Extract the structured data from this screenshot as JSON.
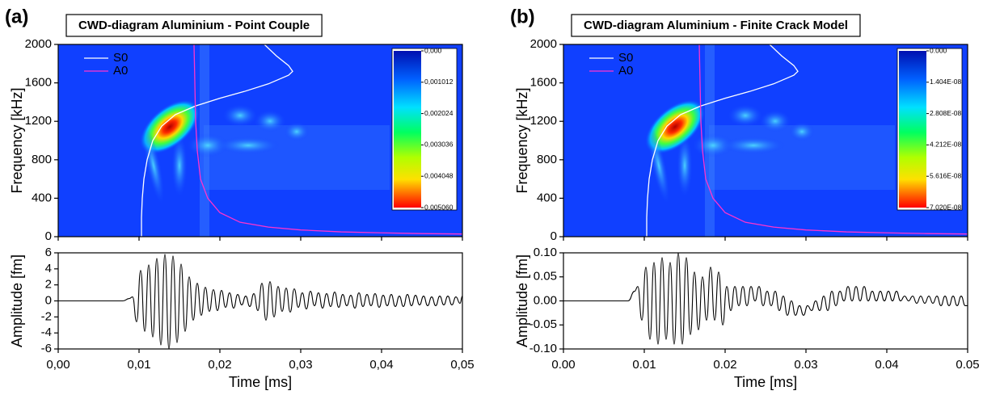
{
  "chart_data": [
    {
      "type": "spectrogram",
      "panel_label": "(a)",
      "title": "CWD-diagram Aluminium - Point Couple",
      "ylabel": "Frequency [kHz]",
      "xlabel": "Time [ms]",
      "xlim": [
        0,
        0.05
      ],
      "xticks": [
        {
          "value": 0,
          "label": "0,00"
        },
        {
          "value": 0.01,
          "label": "0,01"
        },
        {
          "value": 0.02,
          "label": "0,02"
        },
        {
          "value": 0.03,
          "label": "0,03"
        },
        {
          "value": 0.04,
          "label": "0,04"
        },
        {
          "value": 0.05,
          "label": "0,05"
        }
      ],
      "ylim": [
        0,
        2000
      ],
      "yticks": [
        0,
        400,
        800,
        1200,
        1600,
        2000
      ],
      "series": [
        {
          "name": "S0",
          "color": "#ffffff",
          "x": [
            0.0103,
            0.0103,
            0.0104,
            0.0106,
            0.011,
            0.0117,
            0.0128,
            0.0145,
            0.017,
            0.02,
            0.023,
            0.026,
            0.0285,
            0.029,
            0.0285,
            0.027,
            0.0255
          ],
          "values": [
            0,
            200,
            400,
            600,
            800,
            1000,
            1150,
            1270,
            1360,
            1440,
            1510,
            1590,
            1680,
            1720,
            1780,
            1880,
            2000
          ]
        },
        {
          "name": "A0",
          "color": "#ff33cc",
          "x": [
            0.0168,
            0.0169,
            0.017,
            0.0172,
            0.0176,
            0.0185,
            0.02,
            0.0225,
            0.026,
            0.03,
            0.035,
            0.04,
            0.045,
            0.05
          ],
          "values": [
            2000,
            1600,
            1200,
            900,
            600,
            400,
            250,
            150,
            100,
            70,
            50,
            40,
            32,
            28
          ]
        }
      ],
      "colorbar": {
        "lim": [
          0,
          0.00506
        ],
        "ticks": [
          {
            "value": 0,
            "label": "0,000"
          },
          {
            "value": 0.001012,
            "label": "0,001012"
          },
          {
            "value": 0.002024,
            "label": "0,002024"
          },
          {
            "value": 0.003036,
            "label": "0,003036"
          },
          {
            "value": 0.004048,
            "label": "0,004048"
          },
          {
            "value": 0.00506,
            "label": "0,005060"
          }
        ]
      },
      "waveform": {
        "ylabel": "Amplitude [fm]",
        "color": "#000000",
        "ylim": [
          -6,
          6
        ],
        "yticks": [
          6,
          4,
          2,
          0,
          -2,
          -4,
          -6
        ],
        "x": [
          0,
          0.008,
          0.0088,
          0.0092,
          0.0097,
          0.0102,
          0.0107,
          0.0112,
          0.0117,
          0.0122,
          0.0127,
          0.0132,
          0.0137,
          0.0142,
          0.0147,
          0.0152,
          0.0157,
          0.0162,
          0.0167,
          0.0172,
          0.0177,
          0.0182,
          0.0187,
          0.0192,
          0.0197,
          0.0202,
          0.0207,
          0.0212,
          0.0217,
          0.0222,
          0.0227,
          0.0232,
          0.0237,
          0.0242,
          0.0247,
          0.0252,
          0.0257,
          0.0262,
          0.0267,
          0.0272,
          0.0277,
          0.0282,
          0.0287,
          0.0292,
          0.0297,
          0.0302,
          0.0307,
          0.0312,
          0.0317,
          0.0322,
          0.0327,
          0.0332,
          0.0337,
          0.0342,
          0.0347,
          0.0352,
          0.0357,
          0.0362,
          0.0367,
          0.0372,
          0.0377,
          0.0382,
          0.0387,
          0.0392,
          0.0397,
          0.0402,
          0.0407,
          0.0412,
          0.0417,
          0.0422,
          0.0427,
          0.0432,
          0.0437,
          0.0442,
          0.0447,
          0.0452,
          0.0457,
          0.0462,
          0.0467,
          0.0472,
          0.0477,
          0.0482,
          0.0487,
          0.0492,
          0.0497,
          0.05
        ],
        "values": [
          0,
          0,
          0.3,
          0.5,
          -2.6,
          3.8,
          -3.8,
          4.5,
          -4.5,
          5.3,
          -5.5,
          5.8,
          -6,
          5.6,
          -5.2,
          4.6,
          -3.8,
          3.0,
          -2.4,
          2.2,
          -1.8,
          1.7,
          -1.3,
          1.4,
          -1.2,
          1.3,
          -0.8,
          1.0,
          -0.9,
          0.8,
          -0.5,
          0.6,
          -0.7,
          0.9,
          -1.2,
          2.2,
          -2.4,
          2.4,
          -2.0,
          1.8,
          -1.3,
          1.6,
          -1.4,
          1.5,
          -0.8,
          1.0,
          -1.0,
          1.2,
          -0.6,
          1.0,
          -0.9,
          0.9,
          -0.7,
          1.1,
          -0.8,
          0.8,
          -0.6,
          0.7,
          -0.9,
          1.0,
          -0.7,
          0.8,
          -0.6,
          0.9,
          -0.8,
          0.7,
          -0.6,
          0.8,
          -0.7,
          0.6,
          -0.7,
          0.8,
          -0.6,
          0.7,
          -0.5,
          0.6,
          -0.6,
          0.5,
          -0.6,
          0.6,
          -0.5,
          0.6,
          -0.5,
          0.5,
          -0.3,
          0.6
        ]
      }
    },
    {
      "type": "spectrogram",
      "panel_label": "(b)",
      "title": "CWD-diagram Aluminium - Finite Crack Model",
      "ylabel": "Frequency [kHz]",
      "xlabel": "Time [ms]",
      "xlim": [
        0,
        0.05
      ],
      "xticks": [
        {
          "value": 0,
          "label": "0.00"
        },
        {
          "value": 0.01,
          "label": "0.01"
        },
        {
          "value": 0.02,
          "label": "0.02"
        },
        {
          "value": 0.03,
          "label": "0.03"
        },
        {
          "value": 0.04,
          "label": "0.04"
        },
        {
          "value": 0.05,
          "label": "0.05"
        }
      ],
      "ylim": [
        0,
        2000
      ],
      "yticks": [
        0,
        400,
        800,
        1200,
        1600,
        2000
      ],
      "series": [
        {
          "name": "S0",
          "color": "#ffffff",
          "x": [
            0.0103,
            0.0103,
            0.0104,
            0.0106,
            0.011,
            0.0117,
            0.0128,
            0.0145,
            0.017,
            0.02,
            0.023,
            0.026,
            0.0285,
            0.029,
            0.0285,
            0.027,
            0.0255
          ],
          "values": [
            0,
            200,
            400,
            600,
            800,
            1000,
            1150,
            1270,
            1360,
            1440,
            1510,
            1590,
            1680,
            1720,
            1780,
            1880,
            2000
          ]
        },
        {
          "name": "A0",
          "color": "#ff33cc",
          "x": [
            0.0168,
            0.0169,
            0.017,
            0.0172,
            0.0176,
            0.0185,
            0.02,
            0.0225,
            0.026,
            0.03,
            0.035,
            0.04,
            0.045,
            0.05
          ],
          "values": [
            2000,
            1600,
            1200,
            900,
            600,
            400,
            250,
            150,
            100,
            70,
            50,
            40,
            32,
            28
          ]
        }
      ],
      "colorbar": {
        "lim": [
          0,
          7.02e-08
        ],
        "ticks": [
          {
            "value": 0,
            "label": "0.000"
          },
          {
            "value": 1.404e-08,
            "label": "1.404E-08"
          },
          {
            "value": 2.808e-08,
            "label": "2.808E-08"
          },
          {
            "value": 4.212e-08,
            "label": "4.212E-08"
          },
          {
            "value": 5.616e-08,
            "label": "5.616E-08"
          },
          {
            "value": 7.02e-08,
            "label": "7.020E-08"
          }
        ]
      },
      "waveform": {
        "ylabel": "Amplitude [fm]",
        "color": "#000000",
        "ylim": [
          -0.1,
          0.1
        ],
        "yticks": [
          {
            "value": 0.1,
            "label": "0.10"
          },
          {
            "value": 0.05,
            "label": "0.05"
          },
          {
            "value": 0,
            "label": "0.00"
          },
          {
            "value": -0.05,
            "label": "-0.05"
          },
          {
            "value": -0.1,
            "label": "-0.10"
          }
        ],
        "x": [
          0,
          0.008,
          0.0088,
          0.0092,
          0.0097,
          0.0102,
          0.0107,
          0.0112,
          0.0117,
          0.0122,
          0.0127,
          0.0132,
          0.0137,
          0.0142,
          0.0147,
          0.0152,
          0.0157,
          0.0162,
          0.0167,
          0.0172,
          0.0177,
          0.0182,
          0.0187,
          0.0192,
          0.0197,
          0.0202,
          0.0207,
          0.0212,
          0.0217,
          0.0222,
          0.0227,
          0.0232,
          0.0237,
          0.0242,
          0.0247,
          0.0252,
          0.0257,
          0.0262,
          0.0267,
          0.0272,
          0.0277,
          0.0282,
          0.0287,
          0.0292,
          0.0297,
          0.0302,
          0.0307,
          0.0312,
          0.0317,
          0.0322,
          0.0327,
          0.0332,
          0.0337,
          0.0342,
          0.0347,
          0.0352,
          0.0357,
          0.0362,
          0.0367,
          0.0372,
          0.0377,
          0.0382,
          0.0387,
          0.0392,
          0.0397,
          0.0402,
          0.0407,
          0.0412,
          0.0417,
          0.0422,
          0.0427,
          0.0432,
          0.0437,
          0.0442,
          0.0447,
          0.0452,
          0.0457,
          0.0462,
          0.0467,
          0.0472,
          0.0477,
          0.0482,
          0.0487,
          0.0492,
          0.0497,
          0.05
        ],
        "values": [
          0,
          0,
          0.02,
          0.03,
          -0.04,
          0.07,
          -0.08,
          0.08,
          -0.09,
          0.09,
          -0.08,
          0.08,
          -0.09,
          0.1,
          -0.09,
          0.09,
          -0.07,
          0.06,
          -0.06,
          0.05,
          -0.04,
          0.07,
          -0.04,
          0.06,
          -0.05,
          0.03,
          -0.02,
          0.03,
          -0.01,
          0.03,
          -0.01,
          0.03,
          0,
          0.03,
          -0.01,
          0.02,
          -0.01,
          0.02,
          -0.02,
          0.01,
          -0.03,
          0,
          -0.03,
          -0.01,
          -0.03,
          -0.01,
          -0.02,
          0,
          -0.02,
          0.01,
          -0.02,
          0.02,
          -0.01,
          0.02,
          0,
          0.03,
          0,
          0.03,
          0,
          0.03,
          0,
          0.02,
          0,
          0.02,
          0,
          0.02,
          0,
          0.02,
          0,
          0.01,
          0,
          0.01,
          -0.005,
          0.01,
          -0.005,
          0.01,
          -0.005,
          0.01,
          -0.01,
          0.01,
          -0.01,
          0.01,
          -0.01,
          0.01,
          -0.01,
          -0.01
        ]
      }
    }
  ]
}
